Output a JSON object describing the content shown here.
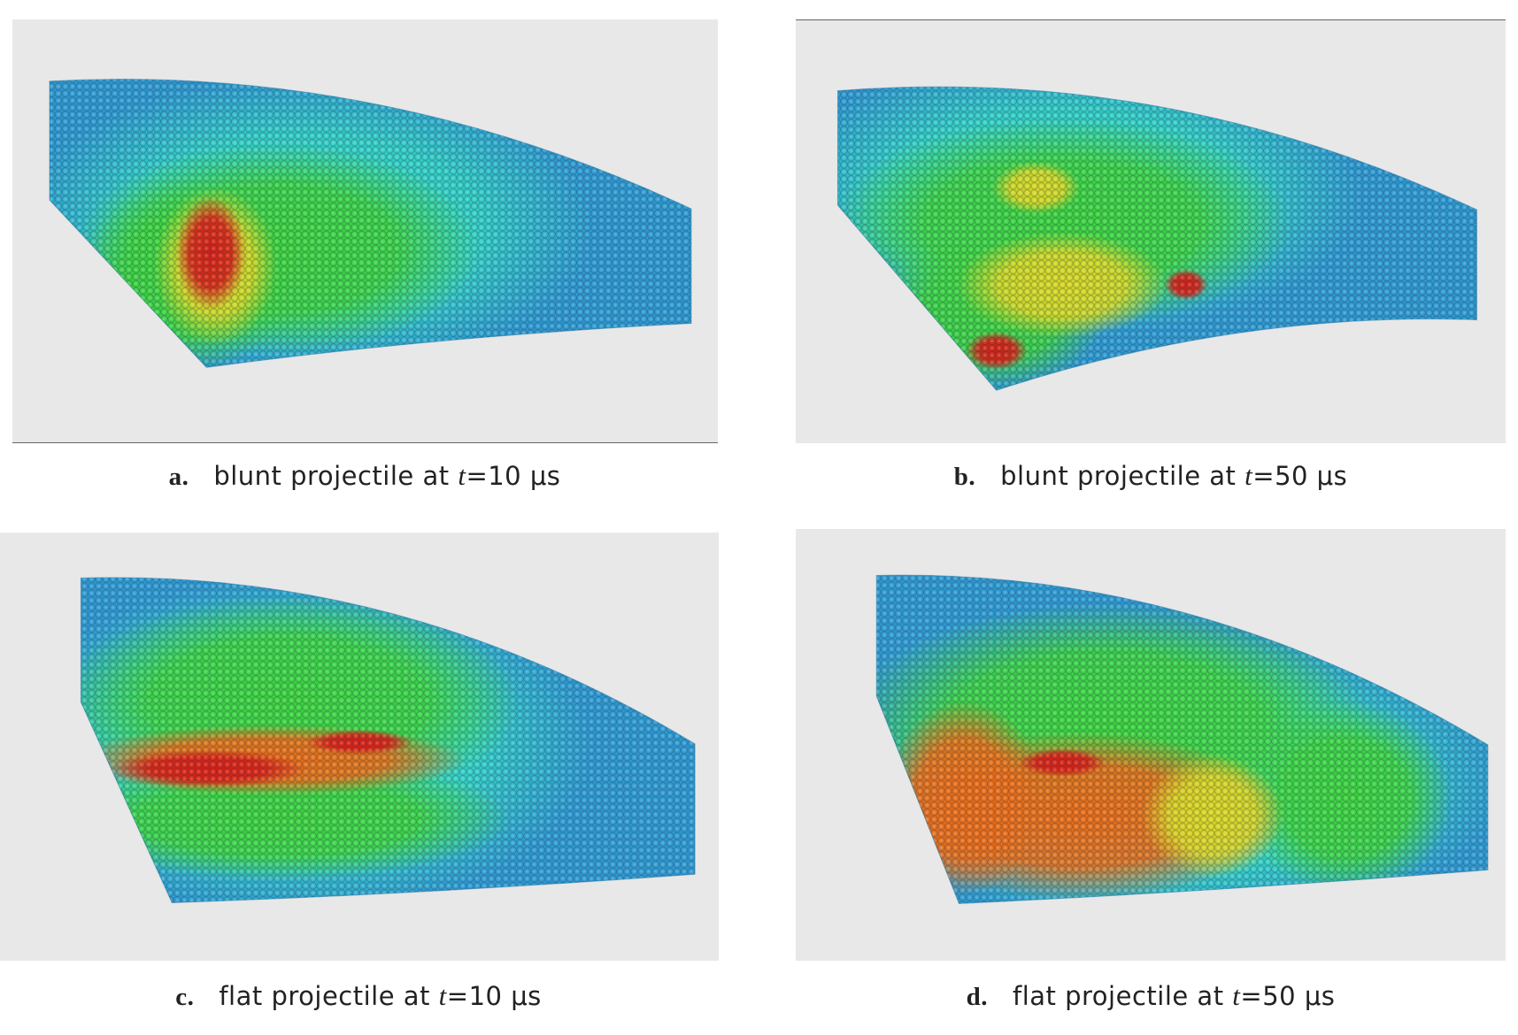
{
  "panels": [
    {
      "label": "a.",
      "caption": "blunt projectile at",
      "variable": "t",
      "value": "=10 μs"
    },
    {
      "label": "b.",
      "caption": "blunt projectile at",
      "variable": "t",
      "value": "=50 μs"
    },
    {
      "label": "c.",
      "caption": "flat projectile at",
      "variable": "t",
      "value": "=10 μs"
    },
    {
      "label": "d.",
      "caption": "flat projectile at",
      "variable": "t",
      "value": "=50 μs"
    }
  ]
}
